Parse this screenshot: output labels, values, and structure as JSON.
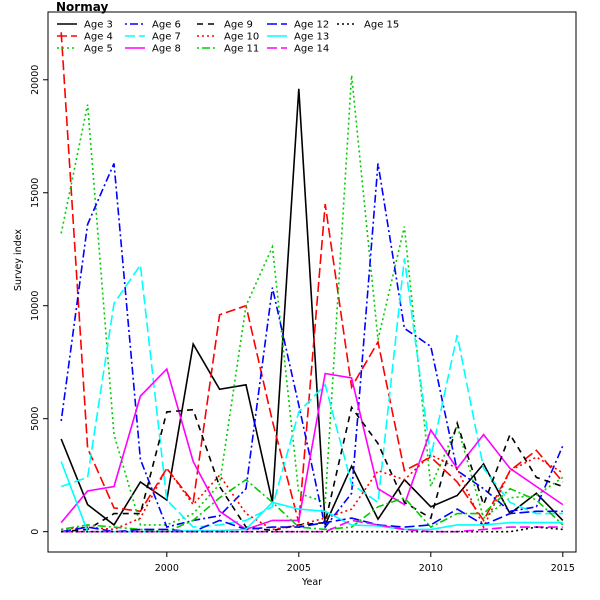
{
  "chart_data": {
    "type": "line",
    "title": "Normay",
    "xlabel": "Year",
    "ylabel": "Survey index",
    "xlim": [
      1995.5,
      2015.5
    ],
    "ylim": [
      -900,
      23000
    ],
    "x_ticks": [
      2000,
      2005,
      2010,
      2015
    ],
    "y_ticks": [
      0,
      5000,
      10000,
      15000,
      20000
    ],
    "grid": false,
    "legend_position": "top-left",
    "x": [
      1996,
      1997,
      1998,
      1999,
      2000,
      2001,
      2002,
      2003,
      2004,
      2005,
      2006,
      2007,
      2008,
      2009,
      2010,
      2011,
      2012,
      2013,
      2014,
      2015
    ],
    "series": [
      {
        "name": "Age 3",
        "color": "#000000",
        "dash": "solid",
        "values": [
          4100,
          1200,
          300,
          2200,
          1400,
          8300,
          6300,
          6500,
          1300,
          19600,
          300,
          2900,
          550,
          2300,
          1100,
          1600,
          3000,
          800,
          1700,
          500
        ]
      },
      {
        "name": "Age 4",
        "color": "#ff0000",
        "dash": "longdash",
        "values": [
          22100,
          3700,
          1050,
          900,
          2800,
          1300,
          9600,
          10000,
          4900,
          400,
          14500,
          6400,
          8400,
          2700,
          3300,
          2200,
          500,
          2700,
          3600,
          2200
        ]
      },
      {
        "name": "Age 5",
        "color": "#00cd00",
        "dash": "dotted",
        "values": [
          13200,
          18900,
          4300,
          300,
          300,
          800,
          2100,
          10000,
          12600,
          1700,
          1300,
          20200,
          8500,
          13500,
          2000,
          4700,
          600,
          1500,
          1600,
          2400
        ]
      },
      {
        "name": "Age 6",
        "color": "#0000ff",
        "dash": "dotdash",
        "values": [
          4900,
          13600,
          16300,
          3200,
          200,
          500,
          700,
          1900,
          10800,
          5600,
          200,
          1700,
          16300,
          9000,
          8200,
          2700,
          1900,
          900,
          1100,
          3800
        ]
      },
      {
        "name": "Age 7",
        "color": "#00ffff",
        "dash": "longdash",
        "values": [
          2000,
          2400,
          10100,
          11800,
          1400,
          200,
          300,
          500,
          1100,
          5300,
          6500,
          2100,
          1300,
          12100,
          3300,
          8700,
          2800,
          1300,
          800,
          800
        ]
      },
      {
        "name": "Age 8",
        "color": "#ff00ff",
        "dash": "solid",
        "values": [
          400,
          1800,
          2000,
          6000,
          7200,
          3100,
          900,
          100,
          500,
          500,
          7000,
          6800,
          1900,
          1200,
          4500,
          2800,
          4300,
          2800,
          2000,
          1200
        ]
      },
      {
        "name": "Age 9",
        "color": "#000000",
        "dash": "dashed",
        "values": [
          0,
          100,
          800,
          800,
          5300,
          5400,
          2000,
          200,
          50,
          300,
          400,
          5500,
          3900,
          1300,
          600,
          4800,
          1200,
          4300,
          2400,
          2000
        ]
      },
      {
        "name": "Age 10",
        "color": "#ff0000",
        "dash": "dotted",
        "values": [
          100,
          200,
          100,
          600,
          2800,
          1200,
          2500,
          800,
          100,
          300,
          600,
          1000,
          2700,
          2300,
          3400,
          2800,
          200,
          2700,
          3300,
          2600
        ]
      },
      {
        "name": "Age 11",
        "color": "#00cd00",
        "dash": "dotdash",
        "values": [
          100,
          300,
          200,
          100,
          0,
          500,
          1500,
          2300,
          1300,
          200,
          100,
          200,
          1100,
          1500,
          200,
          800,
          800,
          1900,
          1400,
          300
        ]
      },
      {
        "name": "Age 12",
        "color": "#0000ff",
        "dash": "longdash",
        "values": [
          0,
          200,
          0,
          100,
          100,
          0,
          500,
          100,
          200,
          200,
          400,
          600,
          300,
          200,
          300,
          1000,
          300,
          800,
          900,
          900
        ]
      },
      {
        "name": "Age 13",
        "color": "#00ffff",
        "dash": "solid",
        "values": [
          3100,
          0,
          0,
          0,
          0,
          50,
          50,
          100,
          1300,
          1000,
          900,
          300,
          250,
          100,
          100,
          300,
          300,
          400,
          400,
          400
        ]
      },
      {
        "name": "Age 14",
        "color": "#ff00ff",
        "dash": "longdash",
        "values": [
          0,
          0,
          0,
          0,
          0,
          0,
          0,
          0,
          0,
          0,
          0,
          500,
          300,
          100,
          0,
          0,
          100,
          200,
          200,
          200
        ]
      },
      {
        "name": "Age 15",
        "color": "#000000",
        "dash": "dotdashlong",
        "values": [
          0,
          0,
          0,
          0,
          0,
          0,
          0,
          0,
          0,
          0,
          0,
          0,
          0,
          0,
          0,
          0,
          0,
          0,
          200,
          100
        ]
      }
    ]
  }
}
